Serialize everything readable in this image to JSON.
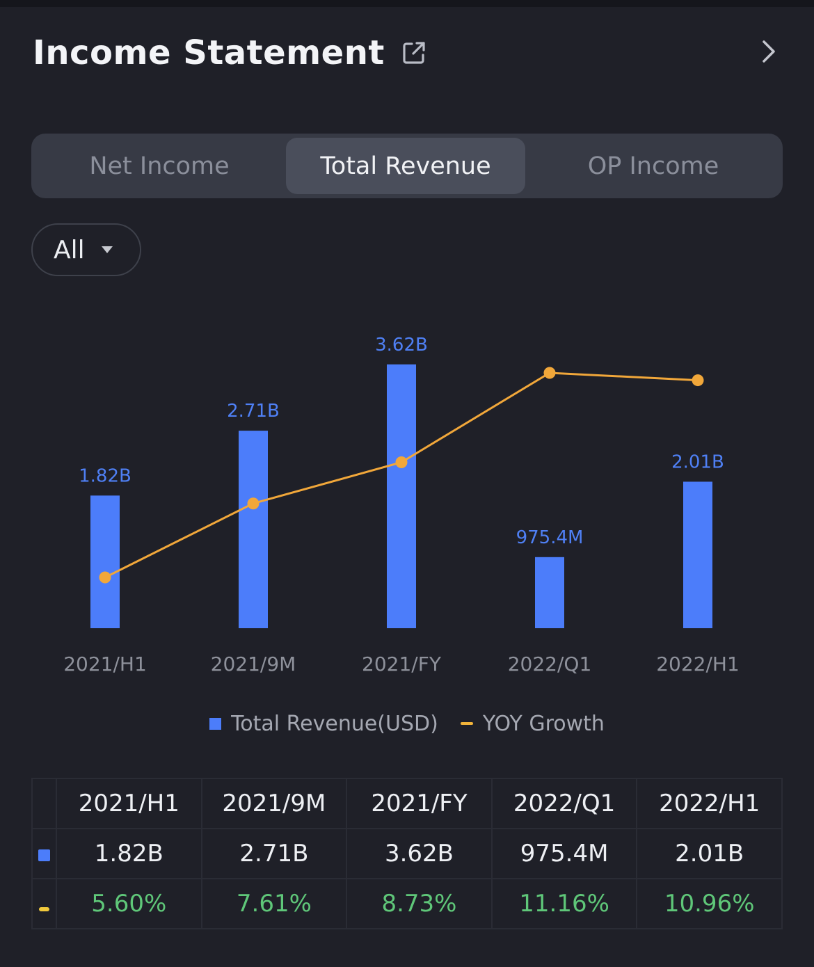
{
  "header": {
    "title": "Income Statement"
  },
  "tabs": [
    {
      "label": "Net Income",
      "active": false
    },
    {
      "label": "Total Revenue",
      "active": true
    },
    {
      "label": "OP Income",
      "active": false
    }
  ],
  "filter": {
    "label": "All"
  },
  "colors": {
    "bar": "#4c7dfa",
    "line": "#f1a73a",
    "growth_text": "#5fc779"
  },
  "chart_data": {
    "type": "bar",
    "categories": [
      "2021/H1",
      "2021/9M",
      "2021/FY",
      "2022/Q1",
      "2022/H1"
    ],
    "series": [
      {
        "name": "Total Revenue(USD)",
        "type": "bar",
        "values": [
          1.82,
          2.71,
          3.62,
          0.9754,
          2.01
        ],
        "labels": [
          "1.82B",
          "2.71B",
          "3.62B",
          "975.4M",
          "2.01B"
        ]
      },
      {
        "name": "YOY Growth",
        "type": "line",
        "values": [
          5.6,
          7.61,
          8.73,
          11.16,
          10.96
        ]
      }
    ],
    "grid": false
  },
  "legend": {
    "bar_label": "Total Revenue(USD)",
    "line_label": "YOY Growth"
  },
  "table": {
    "headers": [
      "2021/H1",
      "2021/9M",
      "2021/FY",
      "2022/Q1",
      "2022/H1"
    ],
    "revenue": [
      "1.82B",
      "2.71B",
      "3.62B",
      "975.4M",
      "2.01B"
    ],
    "growth": [
      "5.60%",
      "7.61%",
      "8.73%",
      "11.16%",
      "10.96%"
    ]
  }
}
